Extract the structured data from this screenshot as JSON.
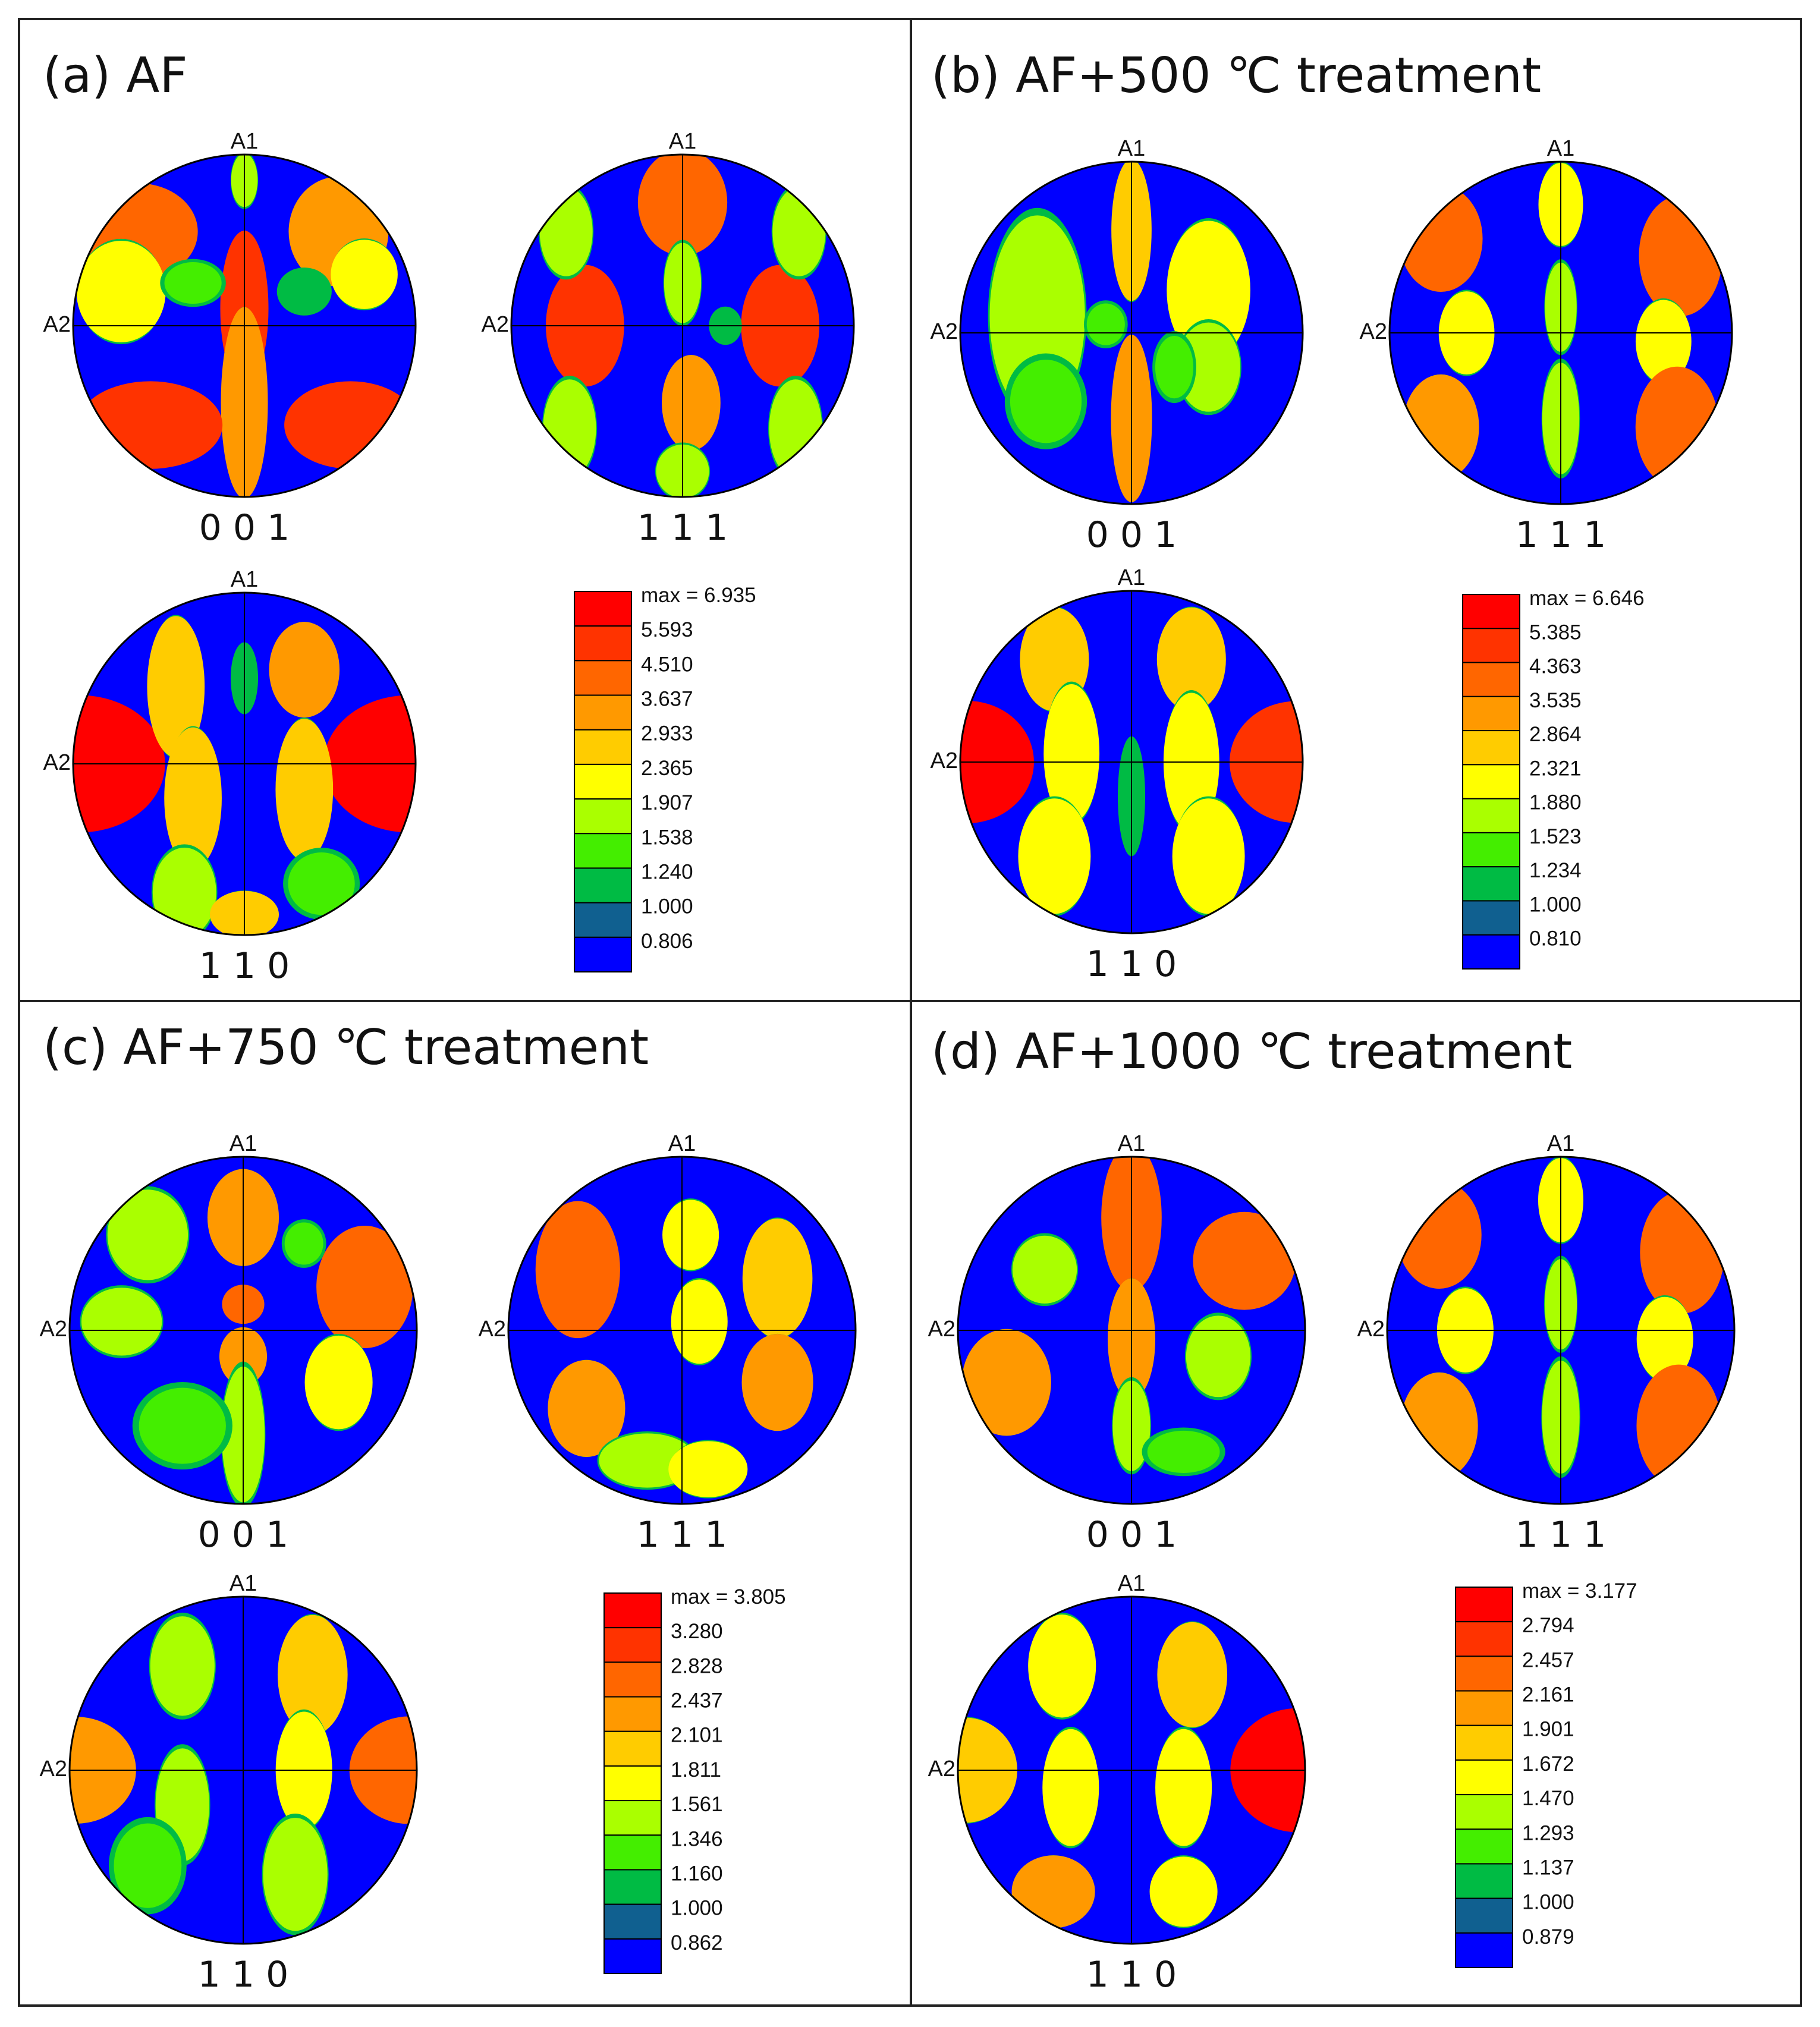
{
  "figure": {
    "panels": [
      {
        "id": "a",
        "title": "(a) AF",
        "pole_figures": [
          {
            "label": "0 0 1",
            "axis_top": "A1",
            "axis_left": "A2",
            "pattern": "p001_af"
          },
          {
            "label": "1 1 1",
            "axis_top": "A1",
            "axis_left": "A2",
            "pattern": "p111_af"
          },
          {
            "label": "1 1 0",
            "axis_top": "A1",
            "axis_left": "A2",
            "pattern": "p110_af"
          }
        ],
        "legend": [
          "max = 6.935",
          "5.593",
          "4.510",
          "3.637",
          "2.933",
          "2.365",
          "1.907",
          "1.538",
          "1.240",
          "1.000",
          "0.806"
        ]
      },
      {
        "id": "b",
        "title": "(b) AF+500 ℃ treatment",
        "pole_figures": [
          {
            "label": "0 0 1",
            "axis_top": "A1",
            "axis_left": "A2",
            "pattern": "p001_500"
          },
          {
            "label": "1 1 1",
            "axis_top": "A1",
            "axis_left": "A2",
            "pattern": "p111_arc"
          },
          {
            "label": "1 1 0",
            "axis_top": "A1",
            "axis_left": "A2",
            "pattern": "p110_arc"
          }
        ],
        "legend": [
          "max = 6.646",
          "5.385",
          "4.363",
          "3.535",
          "2.864",
          "2.321",
          "1.880",
          "1.523",
          "1.234",
          "1.000",
          "0.810"
        ]
      },
      {
        "id": "c",
        "title": "(c) AF+750 ℃ treatment",
        "pole_figures": [
          {
            "label": "0 0 1",
            "axis_top": "A1",
            "axis_left": "A2",
            "pattern": "p001_750"
          },
          {
            "label": "1 1 1",
            "axis_top": "A1",
            "axis_left": "A2",
            "pattern": "p111_750"
          },
          {
            "label": "1 1 0",
            "axis_top": "A1",
            "axis_left": "A2",
            "pattern": "p110_750"
          }
        ],
        "legend": [
          "max = 3.805",
          "3.280",
          "2.828",
          "2.437",
          "2.101",
          "1.811",
          "1.561",
          "1.346",
          "1.160",
          "1.000",
          "0.862"
        ]
      },
      {
        "id": "d",
        "title": "(d) AF+1000 ℃ treatment",
        "pole_figures": [
          {
            "label": "0 0 1",
            "axis_top": "A1",
            "axis_left": "A2",
            "pattern": "p001_1000"
          },
          {
            "label": "1 1 1",
            "axis_top": "A1",
            "axis_left": "A2",
            "pattern": "p111_arc"
          },
          {
            "label": "1 1 0",
            "axis_top": "A1",
            "axis_left": "A2",
            "pattern": "p110_1000"
          }
        ],
        "legend": [
          "max = 3.177",
          "2.794",
          "2.457",
          "2.161",
          "1.901",
          "1.672",
          "1.470",
          "1.293",
          "1.137",
          "1.000",
          "0.879"
        ]
      }
    ],
    "colors": {
      "background": "#0000ff",
      "levels": [
        "#ff0000",
        "#ff3300",
        "#ff6600",
        "#ff9900",
        "#ffcc00",
        "#ffff00",
        "#aaff00",
        "#44ee00",
        "#00bb44",
        "#106090",
        "#0000ff"
      ],
      "frame": "#222222"
    }
  },
  "chart_data": [
    {
      "type": "heatmap",
      "title": "(a) AF",
      "subplots": [
        "0 0 1",
        "1 1 1",
        "1 1 0"
      ],
      "axes": [
        "A1",
        "A2"
      ],
      "levels": [
        6.935,
        5.593,
        4.51,
        3.637,
        2.933,
        2.365,
        1.907,
        1.538,
        1.24,
        1.0,
        0.806
      ],
      "max": 6.935
    },
    {
      "type": "heatmap",
      "title": "(b) AF+500 ℃ treatment",
      "subplots": [
        "0 0 1",
        "1 1 1",
        "1 1 0"
      ],
      "axes": [
        "A1",
        "A2"
      ],
      "levels": [
        6.646,
        5.385,
        4.363,
        3.535,
        2.864,
        2.321,
        1.88,
        1.523,
        1.234,
        1.0,
        0.81
      ],
      "max": 6.646
    },
    {
      "type": "heatmap",
      "title": "(c) AF+750 ℃ treatment",
      "subplots": [
        "0 0 1",
        "1 1 1",
        "1 1 0"
      ],
      "axes": [
        "A1",
        "A2"
      ],
      "levels": [
        3.805,
        3.28,
        2.828,
        2.437,
        2.101,
        1.811,
        1.561,
        1.346,
        1.16,
        1.0,
        0.862
      ],
      "max": 3.805
    },
    {
      "type": "heatmap",
      "title": "(d) AF+1000 ℃ treatment",
      "subplots": [
        "0 0 1",
        "1 1 1",
        "1 1 0"
      ],
      "axes": [
        "A1",
        "A2"
      ],
      "levels": [
        3.177,
        2.794,
        2.457,
        2.161,
        1.901,
        1.672,
        1.47,
        1.293,
        1.137,
        1.0,
        0.879
      ],
      "max": 3.177
    }
  ]
}
